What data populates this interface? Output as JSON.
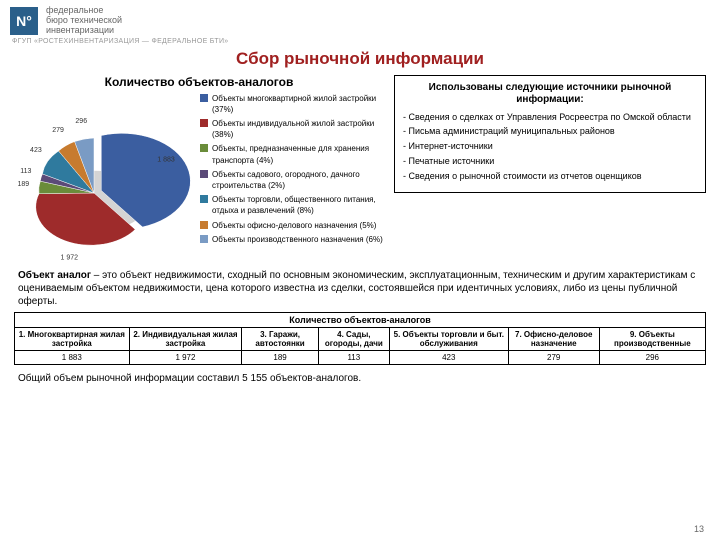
{
  "header": {
    "logo_letter": "N°",
    "org_line1": "федеральное",
    "org_line2": "бюро технической",
    "org_line3": "инвентаризации",
    "tagline": "ФГУП «РОСТЕХИНВЕНТАРИЗАЦИЯ — ФЕДЕРАЛЬНОЕ БТИ»"
  },
  "title": "Сбор рыночной информации",
  "pie": {
    "type": "pie",
    "title": "Количество объектов-аналогов",
    "slices": [
      {
        "name": "Объекты многоквартирной жилой застройки (37%)",
        "value": 1883,
        "pct": 37,
        "color": "#3b5ea0"
      },
      {
        "name": "Объекты индивидуальной жилой застройки (38%)",
        "value": 1972,
        "pct": 38,
        "color": "#9e2b2b"
      },
      {
        "name": "Объекты, предназначенные для хранения транспорта (4%)",
        "value": 189,
        "pct": 4,
        "color": "#6a8c3a"
      },
      {
        "name": "Объекты садового, огородного, дачного строительства (2%)",
        "value": 113,
        "pct": 2,
        "color": "#5b4a78"
      },
      {
        "name": "Объекты торговли, общественного питания, отдыха и развлечений (8%)",
        "value": 423,
        "pct": 8,
        "color": "#2f7a9e"
      },
      {
        "name": "Объекты офисно-делового назначения (5%)",
        "value": 279,
        "pct": 5,
        "color": "#c77b2f"
      },
      {
        "name": "Объекты производственного назначения (6%)",
        "value": 296,
        "pct": 6,
        "color": "#7a9bc4"
      }
    ],
    "background": "#ffffff",
    "label_fontsize": 7,
    "title_fontsize": 12
  },
  "sources": {
    "title": "Использованы следующие источники рыночной информации:",
    "items": [
      "- Сведения о сделках от Управления Росреестра по Омской области",
      "- Письма администраций муниципальных районов",
      "- Интернет-источники",
      "- Печатные источники",
      "- Сведения о рыночной стоимости из отчетов оценщиков"
    ]
  },
  "definition": {
    "term": "Объект аналог",
    "body": " – это объект недвижимости, сходный по основным экономическим, эксплуатационным, техническим и другим характеристикам с оцениваемым объектом недвижимости, цена которого известна из сделки, состоявшейся при идентичных условиях, либо из цены публичной оферты."
  },
  "table": {
    "caption": "Количество объектов-аналогов",
    "columns": [
      "1. Многоквартирная жилая застройка",
      "2. Индивидуальная жилая застройка",
      "3. Гаражи, автостоянки",
      "4. Сады, огороды, дачи",
      "5. Объекты торговли и быт. обслуживания",
      "7. Офисно-деловое назначение",
      "9. Объекты производственные"
    ],
    "rows": [
      [
        "1 883",
        "1 972",
        "189",
        "113",
        "423",
        "279",
        "296"
      ]
    ]
  },
  "summary": "Общий объем рыночной информации составил 5 155 объектов-аналогов.",
  "page_number": "13"
}
